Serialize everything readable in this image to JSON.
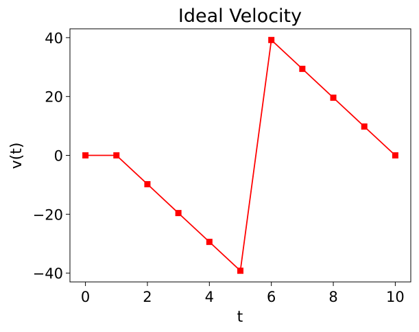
{
  "chart_data": {
    "type": "line",
    "title": "Ideal Velocity",
    "xlabel": "t",
    "ylabel": "v(t)",
    "xlim": [
      -0.5,
      10.5
    ],
    "ylim": [
      -43,
      43
    ],
    "xticks": [
      0,
      2,
      4,
      6,
      8,
      10
    ],
    "yticks": [
      -40,
      -20,
      0,
      20,
      40
    ],
    "ytick_labels": [
      "−40",
      "−20",
      "0",
      "20",
      "40"
    ],
    "grid": false,
    "series": [
      {
        "color": "#ff0000",
        "marker": "square",
        "x": [
          0,
          1,
          2,
          3,
          4,
          5,
          6,
          7,
          8,
          9,
          10
        ],
        "y": [
          0,
          0,
          -9.8,
          -19.6,
          -29.4,
          -39.2,
          39.2,
          29.4,
          19.6,
          9.8,
          0
        ]
      }
    ]
  }
}
